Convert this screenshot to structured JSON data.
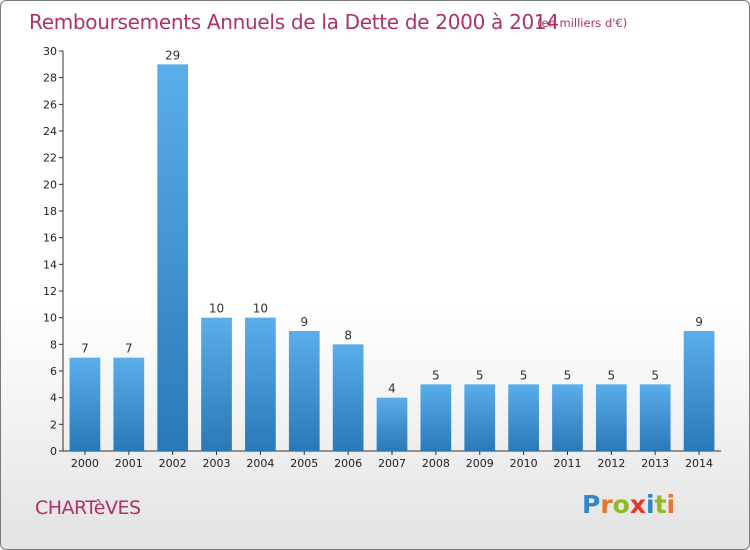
{
  "title": "Remboursements Annuels de la Dette de 2000 à 2014",
  "subtitle": "(en milliers d'€)",
  "commune": "CHARTèVES",
  "logo": {
    "letters": [
      "P",
      "r",
      "o",
      "x",
      "i",
      "t",
      "i"
    ],
    "colors": [
      "#2f86c8",
      "#e8762a",
      "#8fba2a",
      "#e8362a",
      "#2f86c8",
      "#8fba2a",
      "#e8762a"
    ]
  },
  "colors": {
    "bar_top": "#5aaeea",
    "bar_bottom": "#2a78b8",
    "accent": "#b0306a"
  },
  "chart_data": {
    "type": "bar",
    "categories": [
      "2000",
      "2001",
      "2002",
      "2003",
      "2004",
      "2005",
      "2006",
      "2007",
      "2008",
      "2009",
      "2010",
      "2011",
      "2012",
      "2013",
      "2014"
    ],
    "values": [
      7,
      7,
      29,
      10,
      10,
      9,
      8,
      4,
      5,
      5,
      5,
      5,
      5,
      5,
      9
    ],
    "ylim": [
      0,
      30
    ],
    "yticks": [
      0,
      2,
      4,
      6,
      8,
      10,
      12,
      14,
      16,
      18,
      20,
      22,
      24,
      26,
      28,
      30
    ],
    "grid": false,
    "xlabel": "",
    "ylabel": ""
  }
}
